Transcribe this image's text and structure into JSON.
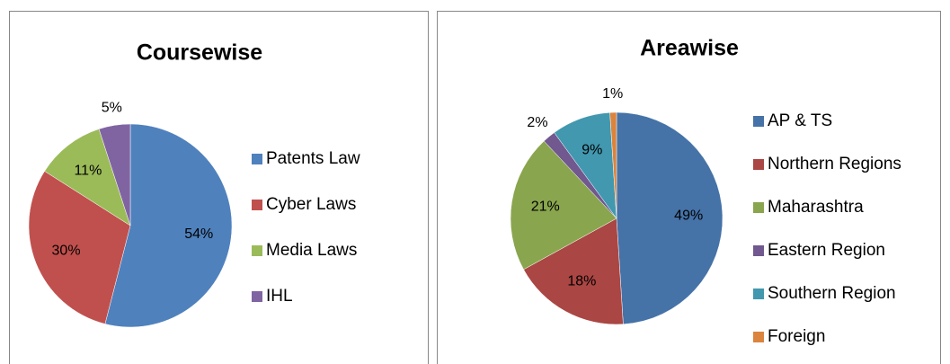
{
  "chart_data": [
    {
      "type": "pie",
      "title": "Coursewise",
      "categories": [
        "Patents Law",
        "Cyber Laws",
        "Media Laws",
        "IHL"
      ],
      "values": [
        54,
        30,
        11,
        5
      ],
      "value_labels": [
        "54%",
        "30%",
        "11%",
        "5%"
      ],
      "colors": [
        "#4f81bd",
        "#c0504d",
        "#9bbb59",
        "#8064a2"
      ],
      "legend": "right"
    },
    {
      "type": "pie",
      "title": "Areawise",
      "categories": [
        "AP & TS",
        "Northern Regions",
        "Maharashtra",
        "Eastern Region",
        "Southern Region",
        "Foreign"
      ],
      "values": [
        49,
        18,
        21,
        2,
        9,
        1
      ],
      "value_labels": [
        "49%",
        "18%",
        "21%",
        "2%",
        "9%",
        "1%"
      ],
      "colors": [
        "#4572a7",
        "#aa4643",
        "#89a54e",
        "#71588f",
        "#4198af",
        "#db843d"
      ],
      "legend": "right"
    }
  ]
}
